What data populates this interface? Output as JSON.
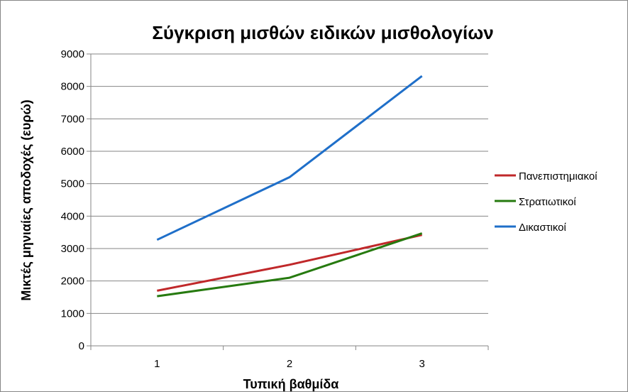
{
  "chart_data": {
    "type": "line",
    "title": "Σύγκριση μισθών ειδικών μισθολογίων",
    "xlabel": "Τυπική βαθμίδα",
    "ylabel": "Μικτές μηνιαίες αποδοχές (ευρώ)",
    "categories": [
      "1",
      "2",
      "3"
    ],
    "ylim": [
      0,
      9000
    ],
    "yticks": [
      "0",
      "1000",
      "2000",
      "3000",
      "4000",
      "5000",
      "6000",
      "7000",
      "8000",
      "9000"
    ],
    "grid": true,
    "legend_position": "right",
    "series": [
      {
        "name": "Πανεπιστημιακοί",
        "color": "#c0282a",
        "values": [
          1700,
          2500,
          3420
        ]
      },
      {
        "name": "Στρατιωτικοί",
        "color": "#267a0f",
        "values": [
          1530,
          2100,
          3470
        ]
      },
      {
        "name": "Δικαστικοί",
        "color": "#1f6fc9",
        "values": [
          3270,
          5200,
          8320
        ]
      }
    ]
  }
}
